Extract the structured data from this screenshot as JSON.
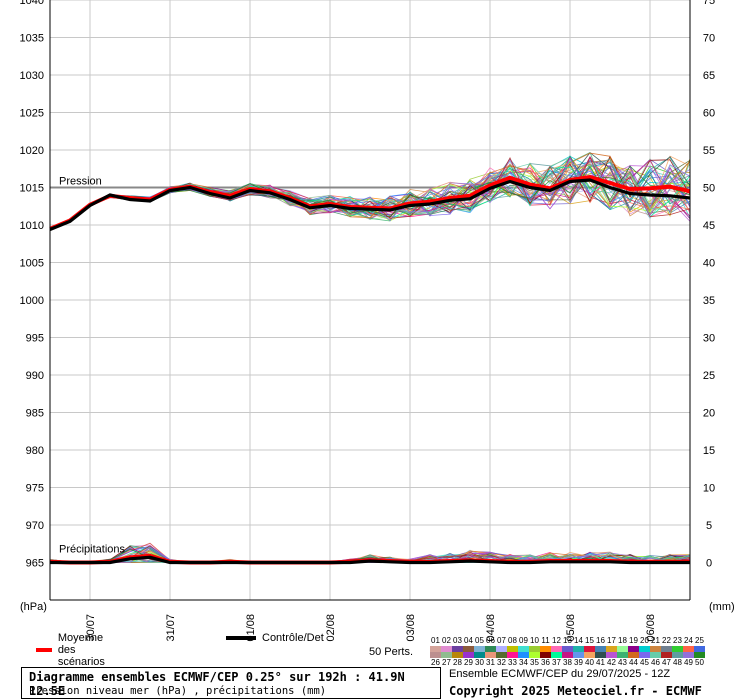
{
  "chart_data": {
    "type": "line",
    "left_axis": {
      "unit_label": "(hPa)",
      "ticks": [
        1040,
        1035,
        1030,
        1025,
        1020,
        1015,
        1010,
        1005,
        1000,
        995,
        990,
        985,
        980,
        975,
        970,
        965
      ],
      "range": [
        960,
        1040
      ]
    },
    "right_axis": {
      "unit_label": "(mm)",
      "ticks": [
        75,
        70,
        65,
        60,
        55,
        50,
        45,
        40,
        35,
        30,
        25,
        20,
        15,
        10,
        5,
        0
      ],
      "range": [
        -5,
        75
      ]
    },
    "x_ticks": [
      "30/07",
      "31/07",
      "01/08",
      "02/08",
      "03/08",
      "04/08",
      "05/08",
      "06/08"
    ],
    "x_tick_steps": [
      5,
      15,
      25,
      35,
      45,
      55,
      65,
      75
    ],
    "step_hours": 3,
    "pressure_label": "Pression",
    "precip_label": "Précipitations",
    "reference_line": 1015,
    "series": [
      {
        "name": "Moyenne des scénarios",
        "color": "#ff0000",
        "values": [
          1009.5,
          1010.6,
          1012.7,
          1013.9,
          1013.6,
          1013.4,
          1014.7,
          1015.1,
          1014.4,
          1013.9,
          1014.8,
          1014.5,
          1013.6,
          1012.5,
          1012.8,
          1012.4,
          1012.3,
          1012.2,
          1012.9,
          1013.1,
          1013.6,
          1013.9,
          1015.3,
          1016.3,
          1015.4,
          1014.9,
          1016.0,
          1016.4,
          1015.6,
          1014.8,
          1014.9,
          1015.1,
          1014.5
        ],
        "precip": [
          0.1,
          0.0,
          0.0,
          0.1,
          0.7,
          0.9,
          0.1,
          0.0,
          0.0,
          0.1,
          0.0,
          0.0,
          0.0,
          0.0,
          0.0,
          0.1,
          0.3,
          0.2,
          0.1,
          0.1,
          0.2,
          0.3,
          0.2,
          0.1,
          0.1,
          0.2,
          0.2,
          0.2,
          0.2,
          0.1,
          0.1,
          0.1,
          0.1
        ]
      },
      {
        "name": "Contrôle/Det",
        "color": "#000000",
        "values": [
          1009.4,
          1010.5,
          1012.6,
          1014.0,
          1013.4,
          1013.2,
          1014.6,
          1015.0,
          1014.2,
          1013.6,
          1014.6,
          1014.3,
          1013.4,
          1012.3,
          1012.6,
          1012.2,
          1012.1,
          1012.0,
          1012.6,
          1012.8,
          1013.3,
          1013.5,
          1014.9,
          1015.8,
          1015.0,
          1014.6,
          1015.8,
          1016.0,
          1015.0,
          1014.2,
          1014.0,
          1013.9,
          1013.6
        ],
        "precip": [
          0.0,
          0.0,
          0.0,
          0.0,
          0.5,
          0.7,
          0.0,
          0.0,
          0.0,
          0.0,
          0.0,
          0.0,
          0.0,
          0.0,
          0.0,
          0.0,
          0.2,
          0.1,
          0.0,
          0.0,
          0.1,
          0.2,
          0.1,
          0.0,
          0.0,
          0.1,
          0.1,
          0.1,
          0.1,
          0.0,
          0.0,
          0.0,
          0.0
        ]
      }
    ],
    "perturbation_count": 50
  },
  "legend": {
    "mean_label": "Moyenne des scénarios",
    "control_label": "Contrôle/Det",
    "perts_label": "50 Perts.",
    "row1": [
      "01",
      "02",
      "03",
      "04",
      "05",
      "06",
      "07",
      "08",
      "09",
      "10",
      "11",
      "12",
      "13",
      "14",
      "15",
      "16",
      "17",
      "18",
      "19",
      "20",
      "21",
      "22",
      "23",
      "24",
      "25"
    ],
    "row2": [
      "26",
      "27",
      "28",
      "29",
      "30",
      "31",
      "32",
      "33",
      "34",
      "35",
      "36",
      "37",
      "38",
      "39",
      "40",
      "41",
      "42",
      "43",
      "44",
      "45",
      "46",
      "47",
      "48",
      "49",
      "50"
    ],
    "colors": [
      "#d4a39a",
      "#e08cd0",
      "#6b3fa0",
      "#8c5a3c",
      "#7fb3d5",
      "#2e8b57",
      "#b0b0ff",
      "#c0c000",
      "#40e0d0",
      "#9acd32",
      "#ff8c00",
      "#ff69b4",
      "#6a5acd",
      "#20b2aa",
      "#dc143c",
      "#4682b4",
      "#daa520",
      "#98fb98",
      "#8b008b",
      "#00ced1",
      "#cd853f",
      "#708090",
      "#32cd32",
      "#ff6347",
      "#4169e1",
      "#bc8f8f",
      "#8fbc8f",
      "#b8860b",
      "#9932cc",
      "#008b8b",
      "#e9967a",
      "#556b2f",
      "#ff1493",
      "#1e90ff",
      "#adff2f",
      "#800000",
      "#00fa9a",
      "#c71585",
      "#6495ed",
      "#f4a460",
      "#2f4f4f",
      "#ba55d3",
      "#3cb371",
      "#d2691e",
      "#7b68ee",
      "#66cdaa",
      "#b22222",
      "#5f9ea0",
      "#9370db",
      "#228b22"
    ]
  },
  "info": {
    "title": "Diagramme ensembles ECMWF/CEP 0.25° sur 192h : 41.9N 12.5E",
    "subtitle": "Pression niveau mer (hPa) , précipitations (mm)",
    "run": "Ensemble ECMWF/CEP du 29/07/2025 - 12Z",
    "copyright": "Copyright 2025 Meteociel.fr - ECMWF"
  }
}
